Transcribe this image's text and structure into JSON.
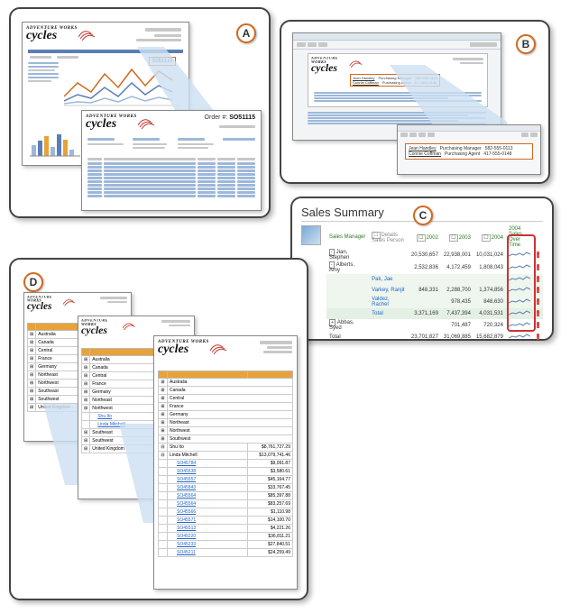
{
  "brand": {
    "line1": "ADVENTURE WORKS",
    "line2": "cycles"
  },
  "panelA": {
    "letter": "A",
    "callout_value": "5051115",
    "order_label": "Order #:",
    "order_value": "SO51115"
  },
  "panelB": {
    "letter": "B",
    "contacts": [
      {
        "name": "Jean Handley",
        "title": "Purchasing Manager",
        "phone": "582-555-0113"
      },
      {
        "name": "Connie Coffman",
        "title": "Purchasing Agent",
        "phone": "417-555-0148"
      }
    ]
  },
  "panelC": {
    "letter": "C",
    "title": "Sales Summary",
    "legend": {
      "details": "Details",
      "sales_person": "Sales Person"
    },
    "columns": {
      "mgr": "Sales Manager",
      "y2002": "2002",
      "y2003": "2003",
      "y2004": "2004",
      "trend": "2004 Sales Over Time"
    },
    "rows": [
      {
        "exp": "-",
        "mgr": "Jian, Stephen",
        "y2002": "20,530,657",
        "y2003": "22,938,001",
        "y2004": "10,031,024"
      },
      {
        "exp": "-",
        "mgr": "Alberts, Amy",
        "y2002": "2,532,836",
        "y2003": "4,172,459",
        "y2004": "1,808,043"
      },
      {
        "sp": "Pak, Jae",
        "y2002": "",
        "y2003": "",
        "y2004": ""
      },
      {
        "sp": "Varkey, Ranjit",
        "y2002": "848,331",
        "y2003": "2,288,700",
        "y2004": "1,374,856"
      },
      {
        "sp": "Valdez, Rachel",
        "y2002": "",
        "y2003": "978,435",
        "y2004": "848,630"
      },
      {
        "total_label": "Total",
        "y2002": "3,371,169",
        "y2003": "7,437,394",
        "y2004": "4,031,531"
      },
      {
        "exp": "+",
        "mgr": "Abbas, Syed",
        "y2002": "",
        "y2003": "701,487",
        "y2004": "720,324"
      },
      {
        "grand_label": "Total",
        "y2002": "23,701,827",
        "y2003": "31,069,885",
        "y2004": "15,682,879"
      }
    ]
  },
  "panelD": {
    "letter": "D",
    "regions": [
      "Australia",
      "Canada",
      "Central",
      "France",
      "Germany",
      "Northeast",
      "Northwest",
      "Southeast",
      "Southwest",
      "United Kingdom"
    ],
    "regions_mid": [
      "Australia",
      "Canada",
      "Central",
      "France",
      "Germany",
      "Northeast",
      "Northwest",
      "Shu Ito",
      "Linda Mitchell",
      "Southeast",
      "Southwest",
      "United Kingdom"
    ],
    "regions_front": [
      "Australia",
      "Canada",
      "Central",
      "France",
      "Germany",
      "Northeast",
      "Northwest",
      "Southwest"
    ],
    "people": [
      {
        "name": "Shu Ito",
        "amt": "$8,761,727.29"
      },
      {
        "name": "Linda Mitchell",
        "amt": "$13,079,741.46"
      }
    ],
    "orders": [
      {
        "so": "SO45784",
        "amt": "$9,091.87"
      },
      {
        "so": "SO45538",
        "amt": "$3,580.61"
      },
      {
        "so": "SO45557",
        "amt": "$45,164.77"
      },
      {
        "so": "SO45843",
        "amt": "$33,767.45"
      },
      {
        "so": "SO45564",
        "amt": "$85,397.88"
      },
      {
        "so": "SO45564",
        "amt": "$83,257.69"
      },
      {
        "so": "SO45566",
        "amt": "$1,110.98"
      },
      {
        "so": "SO45571",
        "amt": "$14,100.70"
      },
      {
        "so": "SO45513",
        "amt": "$4,221.26"
      },
      {
        "so": "SO45220",
        "amt": "$36,811.21"
      },
      {
        "so": "SO45233",
        "amt": "$27,840.51"
      },
      {
        "so": "SO45211",
        "amt": "$24,259.49"
      }
    ]
  },
  "colors": {
    "blue": "#5b7fb5",
    "lightblue": "#9db8da",
    "paleblue": "#cde0f2",
    "orange": "#e8a23a",
    "darkorange": "#d2691e",
    "green": "#2a7a2a",
    "link": "#2266cc",
    "grey": "#c8c8c8"
  }
}
